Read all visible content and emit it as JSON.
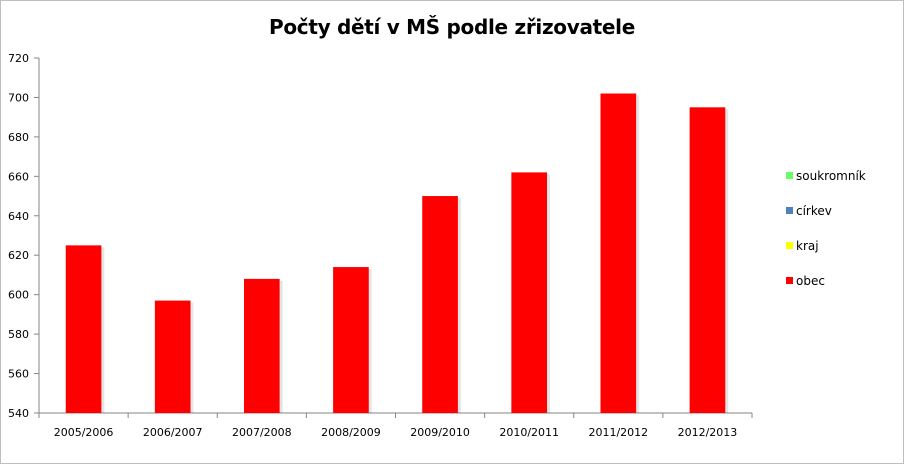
{
  "chart_data": {
    "type": "bar",
    "title": "Počty dětí v MŠ podle zřizovatele",
    "xlabel": "",
    "ylabel": "",
    "categories": [
      "2005/2006",
      "2006/2007",
      "2007/2008",
      "2008/2009",
      "2009/2010",
      "2010/2011",
      "2011/2012",
      "2012/2013"
    ],
    "series": [
      {
        "name": "soukromník",
        "color": "#66ff66",
        "values": [
          0,
          0,
          0,
          0,
          0,
          0,
          0,
          0
        ]
      },
      {
        "name": "církev",
        "color": "#4f81bd",
        "values": [
          0,
          0,
          0,
          0,
          0,
          0,
          0,
          0
        ]
      },
      {
        "name": "kraj",
        "color": "#ffff00",
        "values": [
          0,
          0,
          0,
          0,
          0,
          0,
          0,
          0
        ]
      },
      {
        "name": "obec",
        "color": "#ff0000",
        "values": [
          625,
          597,
          608,
          614,
          650,
          662,
          702,
          695
        ]
      }
    ],
    "ylim": [
      540,
      720
    ],
    "yticks": [
      "540",
      "560",
      "580",
      "600",
      "620",
      "640",
      "660",
      "680",
      "700",
      "720"
    ],
    "grid": false,
    "legend_position": "right"
  }
}
